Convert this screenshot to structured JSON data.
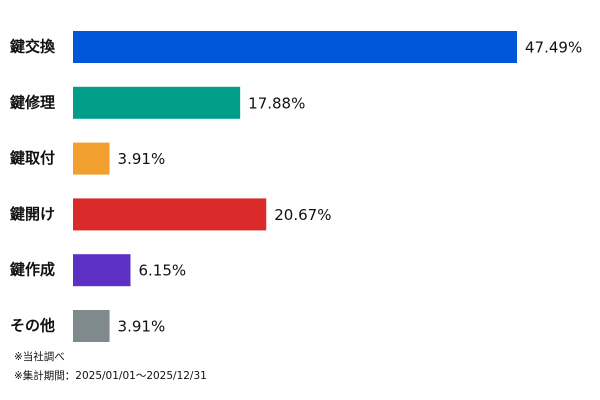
{
  "chart_data": {
    "type": "hbar",
    "categories": [
      "鍵交換",
      "鍵修理",
      "鍵取付",
      "鍵開け",
      "鍵作成",
      "その他"
    ],
    "values": [
      47.49,
      17.88,
      3.91,
      20.67,
      6.15,
      3.91
    ],
    "value_labels": [
      "47.49%",
      "17.88%",
      "3.91%",
      "20.67%",
      "6.15%",
      "3.91%"
    ],
    "colors": [
      "#0056d6",
      "#009e88",
      "#f1a02f",
      "#db2a2a",
      "#5b30c3",
      "#7e8a8c"
    ],
    "notes": [
      "※当社調べ",
      "※集計期間：2025/01/01～2025/12/31"
    ]
  }
}
